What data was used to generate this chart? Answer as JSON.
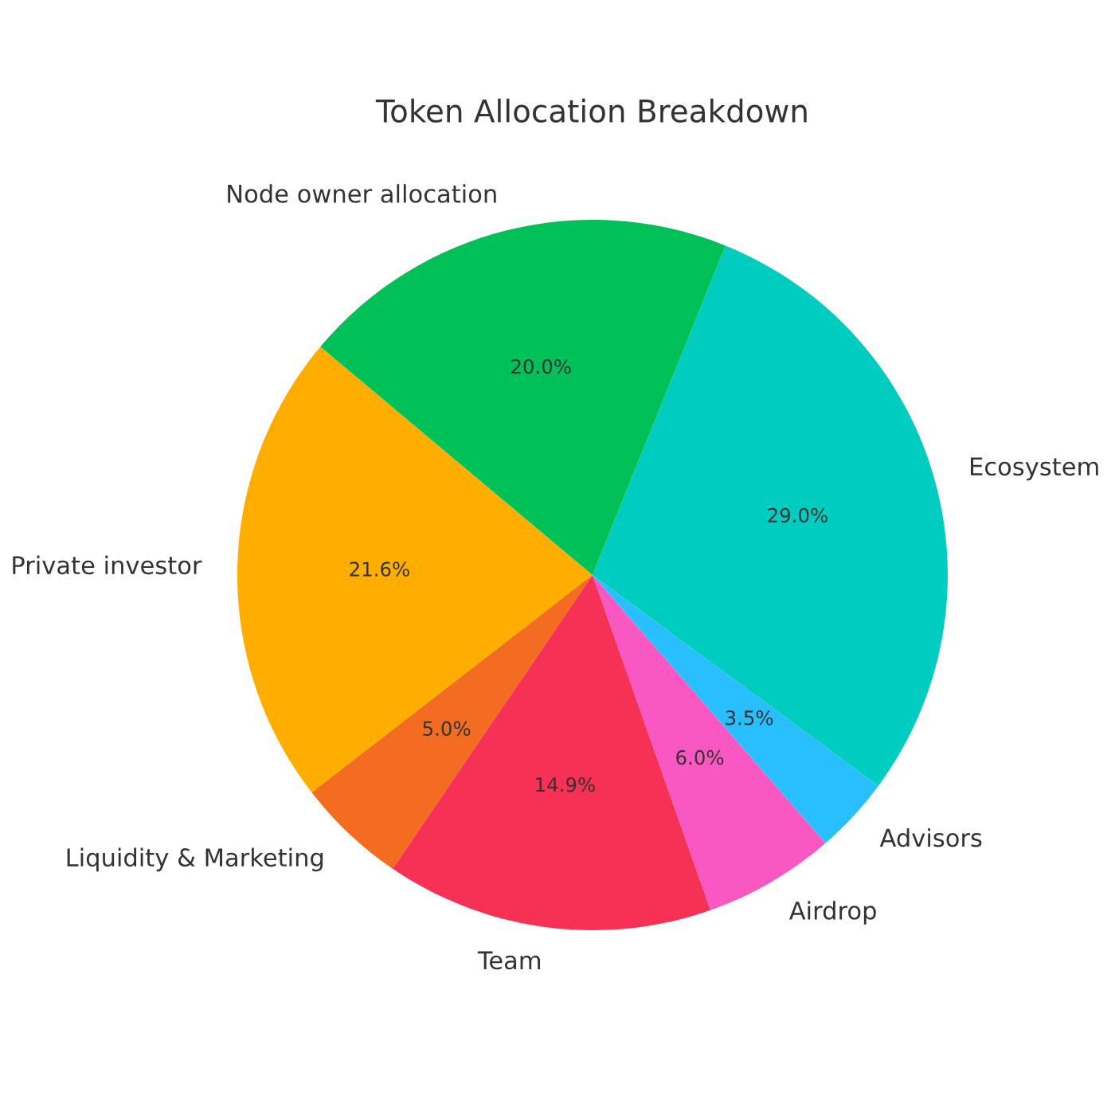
{
  "chart_data": {
    "type": "pie",
    "title": "Token Allocation Breakdown",
    "categories": [
      "Private investor",
      "Liquidity & Marketing",
      "Team",
      "Airdrop",
      "Advisors",
      "Ecosystem",
      "Node owner allocation"
    ],
    "values": [
      21.6,
      5.0,
      14.9,
      6.0,
      3.5,
      29.0,
      20.0
    ],
    "value_labels": [
      "21.6%",
      "5.0%",
      "14.9%",
      "6.0%",
      "3.5%",
      "29.0%",
      "20.0%"
    ],
    "colors": [
      "#ffae00",
      "#f36c21",
      "#f73155",
      "#f957c1",
      "#29bffe",
      "#00ccbf",
      "#00c158"
    ]
  }
}
